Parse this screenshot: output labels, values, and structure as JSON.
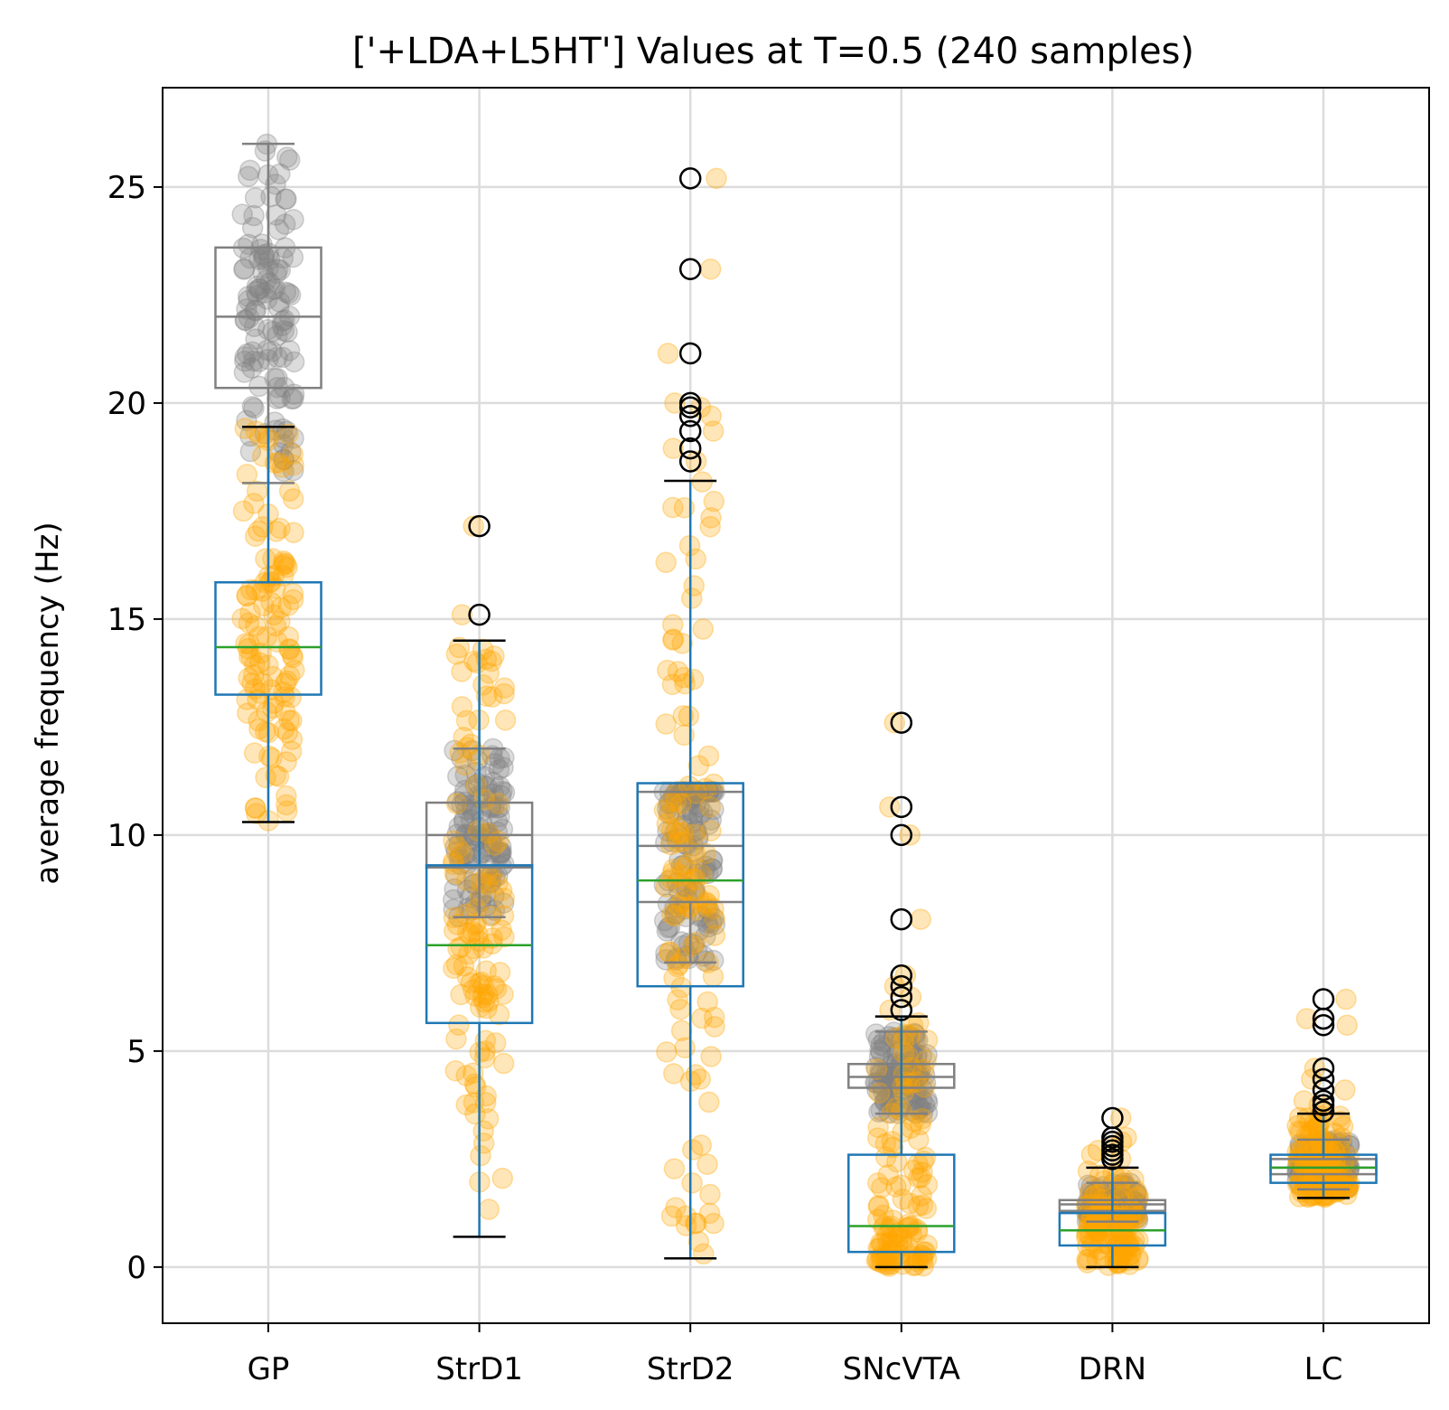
{
  "chart_data": {
    "type": "box",
    "title": "['+LDA+L5HT'] Values at T=0.5 (240 samples)",
    "xlabel": "",
    "ylabel": "average frequency (Hz)",
    "ylim": [
      -1.3,
      27.3
    ],
    "yticks": [
      0,
      5,
      10,
      15,
      20,
      25
    ],
    "grid": true,
    "categories": [
      "GP",
      "StrD1",
      "StrD2",
      "SNcVTA",
      "DRN",
      "LC"
    ],
    "series": [
      {
        "role": "reference",
        "box_color": "#808080",
        "median_color": "#808080",
        "point_color": "#808080",
        "boxes": [
          {
            "q1": 20.35,
            "median": 22.0,
            "q3": 23.6,
            "whislo": 18.15,
            "whishi": 26.0,
            "pmin": 18.15,
            "pmax": 26.0
          },
          {
            "q1": 9.25,
            "median": 10.0,
            "q3": 10.75,
            "whislo": 8.1,
            "whishi": 12.0,
            "pmin": 8.1,
            "pmax": 12.0
          },
          {
            "q1": 8.45,
            "median": 9.75,
            "q3": 11.0,
            "whislo": 7.05,
            "whishi": 11.0,
            "pmin": 7.05,
            "pmax": 11.0
          },
          {
            "q1": 4.15,
            "median": 4.4,
            "q3": 4.7,
            "whislo": 3.55,
            "whishi": 5.45,
            "pmin": 3.55,
            "pmax": 5.45
          },
          {
            "q1": 1.3,
            "median": 1.45,
            "q3": 1.55,
            "whislo": 1.05,
            "whishi": 1.95,
            "pmin": 1.05,
            "pmax": 1.95
          },
          {
            "q1": 2.15,
            "median": 2.3,
            "q3": 2.5,
            "whislo": 1.8,
            "whishi": 2.95,
            "pmin": 1.8,
            "pmax": 2.95
          }
        ]
      },
      {
        "role": "main",
        "box_color": "#1f77b4",
        "median_color": "#2ca02c",
        "point_color": "#ffa500",
        "boxes": [
          {
            "q1": 13.25,
            "median": 14.35,
            "q3": 15.85,
            "whislo": 10.3,
            "whishi": 19.45,
            "pmin": 10.3,
            "pmax": 19.45,
            "fliers": []
          },
          {
            "q1": 5.65,
            "median": 7.45,
            "q3": 9.3,
            "whislo": 0.7,
            "whishi": 14.5,
            "pmin": 0.7,
            "pmax": 14.5,
            "fliers": [
              15.1,
              17.15
            ]
          },
          {
            "q1": 6.5,
            "median": 8.95,
            "q3": 11.2,
            "whislo": 0.2,
            "whishi": 18.2,
            "pmin": 0.2,
            "pmax": 18.2,
            "fliers": [
              18.65,
              18.95,
              19.35,
              19.7,
              19.9,
              20.0,
              21.15,
              23.1,
              25.2
            ]
          },
          {
            "q1": 0.35,
            "median": 0.95,
            "q3": 2.6,
            "whislo": 0.0,
            "whishi": 5.8,
            "pmin": 0.0,
            "pmax": 5.8,
            "fliers": [
              5.95,
              6.25,
              6.5,
              6.75,
              8.05,
              10.0,
              10.65,
              12.6
            ]
          },
          {
            "q1": 0.5,
            "median": 0.85,
            "q3": 1.25,
            "whislo": 0.0,
            "whishi": 2.3,
            "pmin": 0.0,
            "pmax": 2.3,
            "fliers": [
              2.5,
              2.6,
              2.7,
              2.8,
              2.9,
              3.0,
              3.45
            ]
          },
          {
            "q1": 1.95,
            "median": 2.3,
            "q3": 2.6,
            "whislo": 1.6,
            "whishi": 3.55,
            "pmin": 1.6,
            "pmax": 3.55,
            "fliers": [
              3.6,
              3.75,
              3.85,
              4.1,
              4.35,
              4.6,
              5.6,
              5.75,
              6.2
            ]
          }
        ]
      }
    ]
  }
}
